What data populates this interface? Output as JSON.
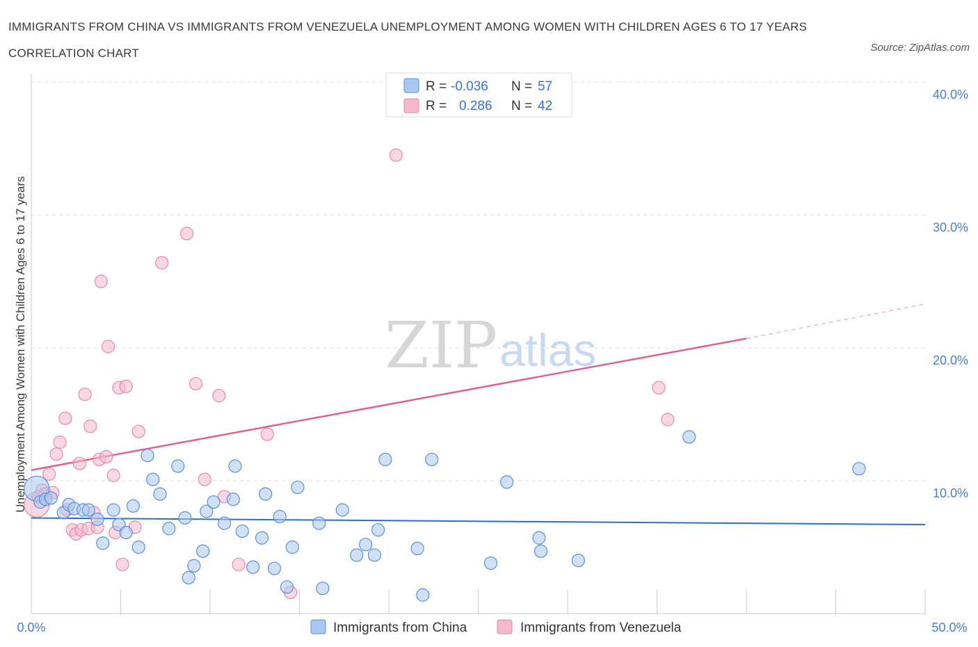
{
  "title": "IMMIGRANTS FROM CHINA VS IMMIGRANTS FROM VENEZUELA UNEMPLOYMENT AMONG WOMEN WITH CHILDREN AGES 6 TO 17 YEARS CORRELATION CHART",
  "source": "Source: ZipAtlas.com",
  "watermark": {
    "zip": "ZIP",
    "atlas": "atlas"
  },
  "colors": {
    "china_fill": "#a9c8ef",
    "china_stroke": "#5b8fd8",
    "china_line": "#2a6fd0",
    "venezuela_fill": "#f5b8cc",
    "venezuela_stroke": "#e58aa8",
    "venezuela_line": "#e06090",
    "axis_label": "#4a7fcf",
    "grid": "#dddddd"
  },
  "legend_top": {
    "rows": [
      {
        "r_label": "R =",
        "r_value": "-0.036",
        "n_label": "N =",
        "n_value": "57"
      },
      {
        "r_label": "R =",
        "r_value": "0.286",
        "n_label": "N =",
        "n_value": "42"
      }
    ]
  },
  "chart_data": {
    "type": "scatter",
    "title": "IMMIGRANTS FROM CHINA VS IMMIGRANTS FROM VENEZUELA UNEMPLOYMENT AMONG WOMEN WITH CHILDREN AGES 6 TO 17 YEARS CORRELATION CHART",
    "xlabel": "",
    "ylabel": "Unemployment Among Women with Children Ages 6 to 17 years",
    "xlim": [
      0,
      50
    ],
    "ylim": [
      0,
      40
    ],
    "x_tick_labels": [
      "0.0%",
      "50.0%"
    ],
    "y_tick_labels": [
      "10.0%",
      "20.0%",
      "30.0%",
      "40.0%"
    ],
    "y_ticks": [
      10,
      20,
      30,
      40
    ],
    "grid": true,
    "legend_position": "bottom",
    "series": [
      {
        "name": "Immigrants from China",
        "R": -0.036,
        "N": 57,
        "trend": {
          "x": [
            0,
            50
          ],
          "y": [
            7.2,
            6.7
          ]
        },
        "points": [
          [
            0.3,
            9.4
          ],
          [
            0.5,
            8.4
          ],
          [
            0.8,
            8.6
          ],
          [
            1.1,
            8.7
          ],
          [
            1.8,
            7.6
          ],
          [
            2.1,
            8.2
          ],
          [
            2.4,
            7.9
          ],
          [
            2.9,
            7.8
          ],
          [
            3.2,
            7.8
          ],
          [
            3.7,
            7.1
          ],
          [
            4.0,
            5.3
          ],
          [
            4.6,
            7.8
          ],
          [
            4.9,
            6.7
          ],
          [
            5.3,
            6.1
          ],
          [
            5.7,
            8.1
          ],
          [
            6.0,
            5.0
          ],
          [
            6.5,
            11.9
          ],
          [
            6.8,
            10.1
          ],
          [
            7.2,
            9.0
          ],
          [
            7.7,
            6.4
          ],
          [
            8.2,
            11.1
          ],
          [
            8.6,
            7.2
          ],
          [
            8.8,
            2.7
          ],
          [
            9.1,
            3.6
          ],
          [
            9.6,
            4.7
          ],
          [
            9.8,
            7.7
          ],
          [
            10.2,
            8.4
          ],
          [
            10.8,
            6.8
          ],
          [
            11.3,
            8.6
          ],
          [
            11.4,
            11.1
          ],
          [
            11.8,
            6.2
          ],
          [
            12.4,
            3.5
          ],
          [
            12.9,
            5.7
          ],
          [
            13.1,
            9.0
          ],
          [
            13.6,
            3.4
          ],
          [
            13.9,
            7.3
          ],
          [
            14.3,
            2.0
          ],
          [
            14.6,
            5.0
          ],
          [
            14.9,
            9.5
          ],
          [
            16.1,
            6.8
          ],
          [
            16.3,
            1.9
          ],
          [
            17.4,
            7.8
          ],
          [
            18.2,
            4.4
          ],
          [
            18.7,
            5.2
          ],
          [
            19.2,
            4.4
          ],
          [
            19.4,
            6.3
          ],
          [
            19.8,
            11.6
          ],
          [
            21.6,
            4.9
          ],
          [
            21.9,
            1.4
          ],
          [
            22.4,
            11.6
          ],
          [
            25.7,
            3.8
          ],
          [
            26.6,
            9.9
          ],
          [
            28.4,
            5.7
          ],
          [
            28.5,
            4.7
          ],
          [
            30.6,
            4.0
          ],
          [
            36.8,
            13.3
          ],
          [
            46.3,
            10.9
          ]
        ]
      },
      {
        "name": "Immigrants from Venezuela",
        "R": 0.286,
        "N": 42,
        "trend": {
          "x": [
            0,
            40
          ],
          "y": [
            10.8,
            20.7
          ]
        },
        "trend_dashed": {
          "x": [
            40,
            50
          ],
          "y": [
            20.7,
            23.3
          ]
        },
        "points": [
          [
            0.3,
            8.2
          ],
          [
            0.6,
            9.3
          ],
          [
            0.8,
            9.0
          ],
          [
            1.0,
            10.5
          ],
          [
            1.4,
            12.0
          ],
          [
            1.6,
            12.9
          ],
          [
            1.9,
            14.7
          ],
          [
            2.0,
            7.8
          ],
          [
            2.3,
            6.3
          ],
          [
            2.5,
            6.0
          ],
          [
            2.7,
            11.3
          ],
          [
            2.8,
            6.3
          ],
          [
            3.0,
            16.5
          ],
          [
            3.2,
            6.4
          ],
          [
            3.3,
            14.1
          ],
          [
            3.7,
            6.5
          ],
          [
            3.8,
            11.6
          ],
          [
            3.9,
            25.0
          ],
          [
            4.2,
            11.8
          ],
          [
            4.3,
            20.1
          ],
          [
            4.6,
            10.4
          ],
          [
            4.7,
            6.1
          ],
          [
            4.9,
            17.0
          ],
          [
            5.1,
            3.7
          ],
          [
            5.3,
            17.1
          ],
          [
            5.8,
            6.5
          ],
          [
            6.0,
            13.7
          ],
          [
            7.3,
            26.4
          ],
          [
            8.7,
            28.6
          ],
          [
            9.2,
            17.3
          ],
          [
            9.7,
            10.1
          ],
          [
            10.5,
            16.4
          ],
          [
            10.8,
            8.8
          ],
          [
            11.6,
            3.7
          ],
          [
            13.2,
            13.5
          ],
          [
            14.5,
            1.6
          ],
          [
            20.4,
            34.5
          ],
          [
            35.1,
            17.0
          ],
          [
            35.6,
            14.6
          ],
          [
            0.4,
            8.8
          ],
          [
            1.2,
            9.1
          ],
          [
            3.5,
            7.6
          ]
        ]
      }
    ]
  },
  "bottom_legend": {
    "items": [
      {
        "label": "Immigrants from China"
      },
      {
        "label": "Immigrants from Venezuela"
      }
    ]
  }
}
